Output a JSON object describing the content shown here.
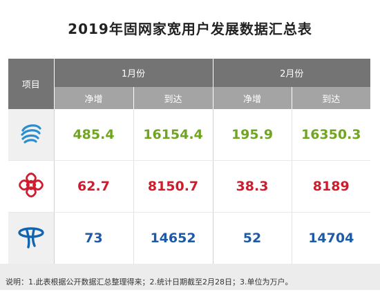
{
  "title": "2019年固网家宽用户发展数据汇总表",
  "colors": {
    "green": "#6fa520",
    "red": "#cf1b2b",
    "blue": "#1f5aa6",
    "mobile_logo": "#2a8ecf",
    "unicom_logo": "#d11c2e",
    "telecom_logo": "#1164b0"
  },
  "header": {
    "item": "项目",
    "jan": "1月份",
    "feb": "2月份",
    "net_add": "净增",
    "total": "到达"
  },
  "rows": [
    {
      "logo_icon": "china-mobile-logo-icon",
      "jan_net": "485.4",
      "jan_total": "16154.4",
      "feb_net": "195.9",
      "feb_total": "16350.3"
    },
    {
      "logo_icon": "china-unicom-logo-icon",
      "jan_net": "62.7",
      "jan_total": "8150.7",
      "feb_net": "38.3",
      "feb_total": "8189"
    },
    {
      "logo_icon": "china-telecom-logo-icon",
      "jan_net": "73",
      "jan_total": "14652",
      "feb_net": "52",
      "feb_total": "14704"
    }
  ],
  "note": "说明：1.此表根据公开数据汇总整理得来；2.统计日期截至2月28日；3.单位为万户。"
}
